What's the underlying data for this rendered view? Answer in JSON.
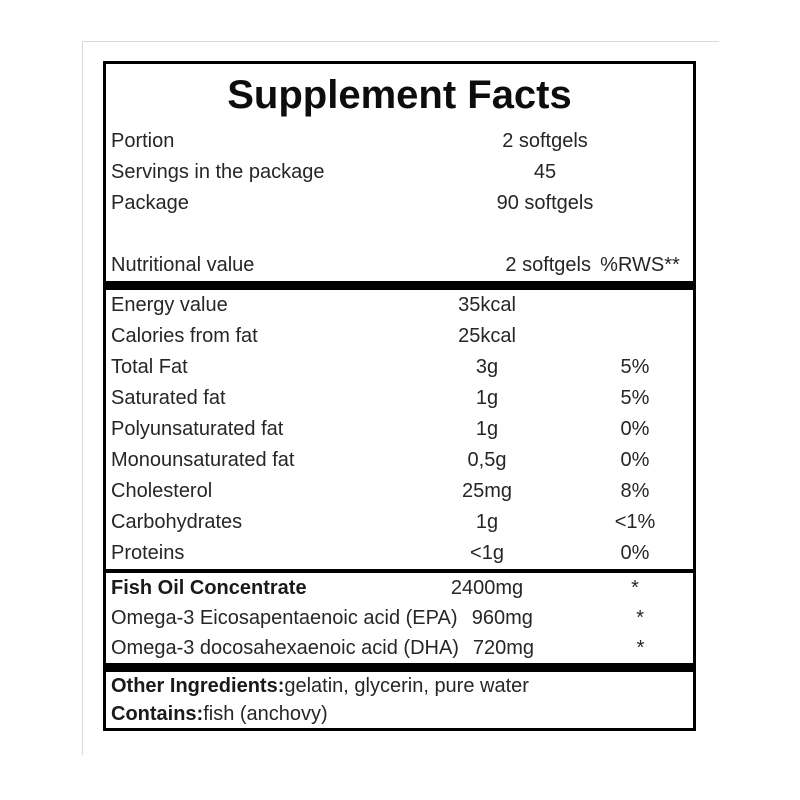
{
  "title": "Supplement Facts",
  "info_rows": [
    {
      "label": "Portion",
      "value": "2 softgels"
    },
    {
      "label": "Servings in the package",
      "value": "45"
    },
    {
      "label": "Package",
      "value": "90 softgels"
    }
  ],
  "column_header": {
    "label": "Nutritional value",
    "amount_col": "2 softgels",
    "rws_col": "%RWS**"
  },
  "nutrition_rows": [
    {
      "label": "Energy value",
      "amount": "35kcal",
      "rws": ""
    },
    {
      "label": "Calories from fat",
      "amount": "25kcal",
      "rws": ""
    },
    {
      "label": "Total Fat",
      "amount": "3g",
      "rws": "5%"
    },
    {
      "label": "Saturated fat",
      "amount": "1g",
      "rws": "5%"
    },
    {
      "label": "Polyunsaturated fat",
      "amount": "1g",
      "rws": "0%"
    },
    {
      "label": "Monounsaturated fat",
      "amount": "0,5g",
      "rws": "0%"
    },
    {
      "label": "Cholesterol",
      "amount": "25mg",
      "rws": "8%"
    },
    {
      "label": "Carbohydrates",
      "amount": "1g",
      "rws": "<1%"
    },
    {
      "label": "Proteins",
      "amount": "<1g",
      "rws": "0%"
    }
  ],
  "ingredient_rows": [
    {
      "label": "Fish Oil Concentrate",
      "amount": "2400mg",
      "rws": "*"
    },
    {
      "label": "Omega-3 Eicosapentaenoic acid (EPA)",
      "amount": "960mg",
      "rws": "*"
    },
    {
      "label": "Omega-3 docosahexaenoic acid (DHA)",
      "amount": "720mg",
      "rws": "*"
    }
  ],
  "footer": {
    "other_ingredients_label": "Other Ingredients:",
    "other_ingredients_value": " gelatin, glycerin, pure water",
    "contains_label": "Contains:",
    "contains_value": " fish (anchovy)"
  },
  "colors": {
    "border": "#000000",
    "text": "#262626",
    "background": "#ffffff",
    "artifact_line": "#d9d9d9"
  }
}
